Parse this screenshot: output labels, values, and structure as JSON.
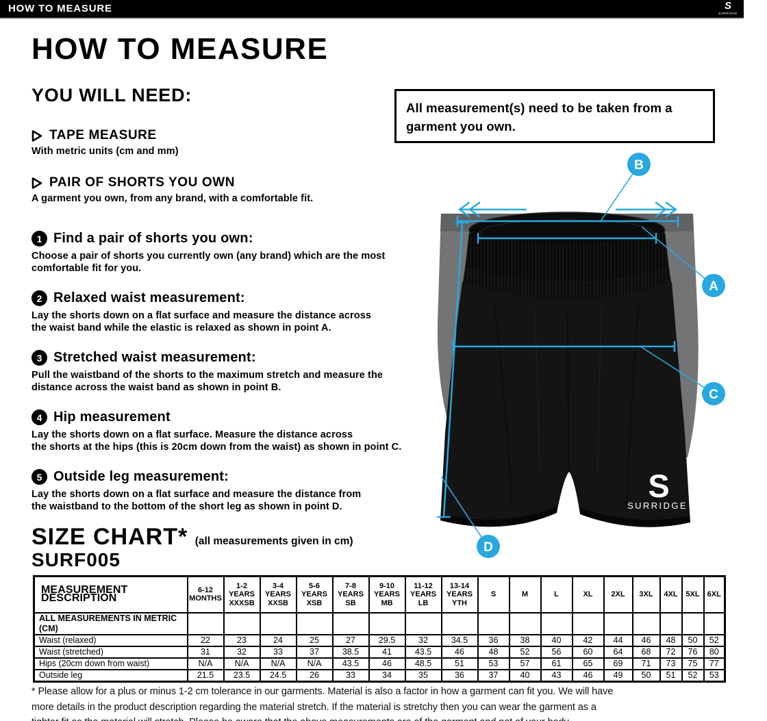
{
  "top_bar": {
    "title": "HOW TO MEASURE",
    "brand": "SURRIDGE"
  },
  "page_title": "HOW TO MEASURE",
  "you_will_need": {
    "heading": "YOU WILL NEED:",
    "items": [
      {
        "title": "TAPE MEASURE",
        "description": "With metric units (cm and mm)"
      },
      {
        "title": "PAIR OF SHORTS YOU OWN",
        "description": "A garment you own, from any brand, with a comfortable fit."
      }
    ]
  },
  "note_box": "All measurement(s) need to be taken from a garment you own.",
  "steps": [
    {
      "number": "1",
      "title": "Find a pair of shorts you own:",
      "lines": [
        "Choose a pair of shorts you currently own (any brand) which are the most",
        "comfortable fit for you."
      ]
    },
    {
      "number": "2",
      "title": "Relaxed waist measurement:",
      "lines": [
        "Lay the shorts down on a flat surface and measure the distance across",
        "the waist band while the elastic is relaxed as shown in point A."
      ]
    },
    {
      "number": "3",
      "title": "Stretched waist measurement:",
      "lines": [
        "Pull the waistband of the shorts to the maximum stretch and measure the",
        "distance across the waist band as shown in point B."
      ]
    },
    {
      "number": "4",
      "title": "Hip measurement",
      "lines": [
        "Lay the shorts down on a flat surface. Measure the distance across",
        "the shorts at the hips (this is 20cm down from the waist)  as shown in point C."
      ]
    },
    {
      "number": "5",
      "title": "Outside leg measurement:",
      "lines": [
        "Lay the shorts down on a flat surface and measure the distance from",
        "the waistband to the bottom of the short leg as shown in point D."
      ]
    }
  ],
  "diagram": {
    "labels": [
      "A",
      "B",
      "C",
      "D"
    ],
    "accent_color": "#29a8e0",
    "garment_logo_initial": "S",
    "garment_logo": "SURRIDGE"
  },
  "size_chart": {
    "heading": "SIZE CHART*",
    "subheading": "(all measurements given in cm)",
    "product_code": "SURF005",
    "table": {
      "first_column_header": "MEASUREMENT DESCRIPTION",
      "columns": [
        [
          "6-12",
          "MONTHS"
        ],
        [
          "1-2",
          "YEARS",
          "XXXSB"
        ],
        [
          "3-4",
          "YEARS",
          "XXSB"
        ],
        [
          "5-6",
          "YEARS",
          "XSB"
        ],
        [
          "7-8",
          "YEARS",
          "SB"
        ],
        [
          "9-10",
          "YEARS",
          "MB"
        ],
        [
          "11-12",
          "YEARS",
          "LB"
        ],
        [
          "13-14",
          "YEARS",
          "YTH"
        ],
        [
          "S"
        ],
        [
          "M"
        ],
        [
          "L"
        ],
        [
          "XL"
        ],
        [
          "2XL"
        ],
        [
          "3XL"
        ],
        [
          "4XL"
        ],
        [
          "5XL"
        ],
        [
          "6XL"
        ]
      ],
      "section_row_label": "ALL MEASUREMENTS IN METRIC (CM)",
      "rows": [
        {
          "label": "Waist (relaxed)",
          "values": [
            "22",
            "23",
            "24",
            "25",
            "27",
            "29.5",
            "32",
            "34.5",
            "36",
            "38",
            "40",
            "42",
            "44",
            "46",
            "48",
            "50",
            "52"
          ]
        },
        {
          "label": "Waist (stretched)",
          "values": [
            "31",
            "32",
            "33",
            "37",
            "38.5",
            "41",
            "43.5",
            "46",
            "48",
            "52",
            "56",
            "60",
            "64",
            "68",
            "72",
            "76",
            "80"
          ]
        },
        {
          "label": "Hips (20cm down from waist)",
          "values": [
            "N/A",
            "N/A",
            "N/A",
            "N/A",
            "43.5",
            "46",
            "48.5",
            "51",
            "53",
            "57",
            "61",
            "65",
            "69",
            "71",
            "73",
            "75",
            "77"
          ]
        },
        {
          "label": "Outside leg",
          "values": [
            "21.5",
            "23.5",
            "24.5",
            "26",
            "33",
            "34",
            "35",
            "36",
            "37",
            "40",
            "43",
            "46",
            "49",
            "50",
            "51",
            "52",
            "53"
          ]
        }
      ]
    }
  },
  "footnote_lines": [
    "* Please allow for a plus or minus 1-2 cm tolerance in our garments. Material is also a factor in how a garment can fit you. We will have",
    "more details in the product description regarding the material stretch.  If the material is stretchy then you can wear the garment as a",
    "tighter fit as the material will stretch.  Please be aware that the above measurements are of the garment and not of your body."
  ]
}
